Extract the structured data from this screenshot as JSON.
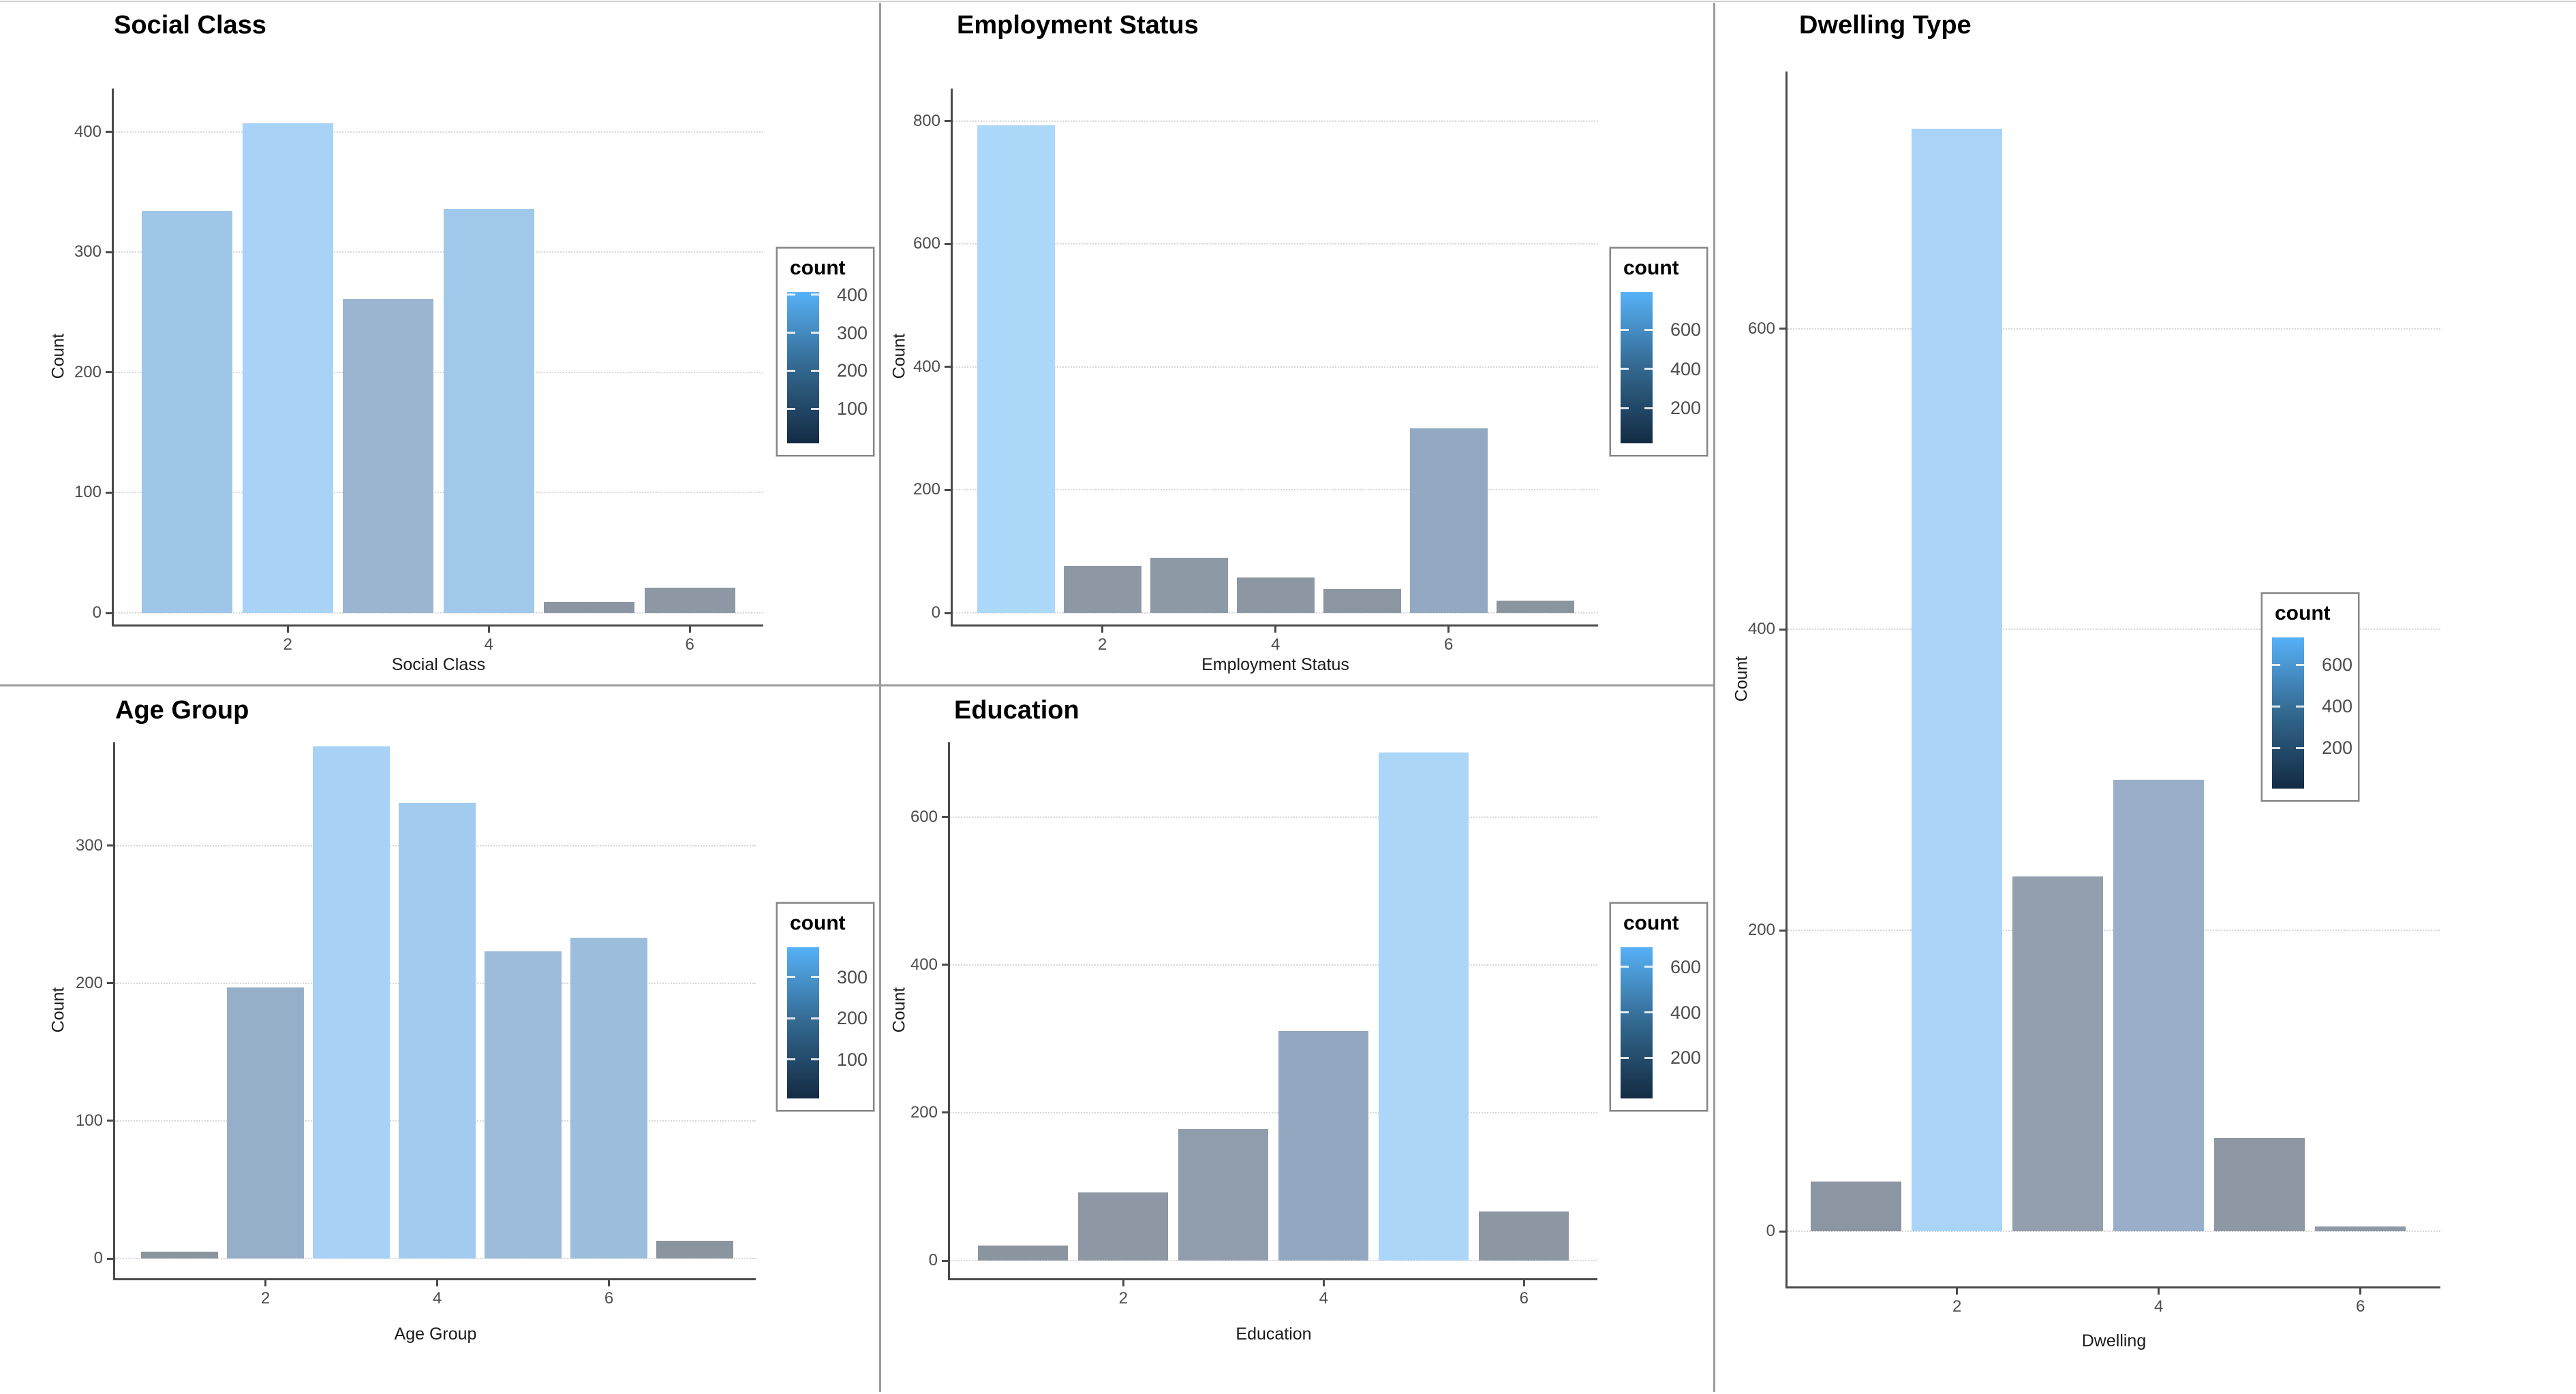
{
  "app": {
    "background": "#ffffff"
  },
  "colors": {
    "gradient_high": "#56B1F7",
    "gradient_low": "#132B43",
    "axis_line": "#4a4a4a",
    "grid_line": "#d6d6d6",
    "tick_text": "#4d4d4d",
    "title_text": "#000000",
    "divider": "#9b9b9b",
    "legend_border": "#858585"
  },
  "chart_data": [
    {
      "id": "social-class",
      "type": "bar",
      "title": "Social Class",
      "xlabel": "Social Class",
      "ylabel": "Count",
      "x": [
        1,
        2,
        3,
        4,
        5,
        6
      ],
      "values": [
        334,
        407,
        261,
        336,
        9,
        21
      ],
      "bar_colors": [
        "#9EC6E8",
        "#A8D3F6",
        "#9BB4D0",
        "#A0C8EA",
        "#8C96A2",
        "#8D98A4"
      ],
      "yticks": [
        0,
        100,
        200,
        300,
        400
      ],
      "xticks": [
        2,
        4,
        6
      ],
      "ylim": [
        0,
        436
      ],
      "grid": true,
      "legend": {
        "title": "count",
        "ticks": [
          400,
          300,
          200,
          100
        ],
        "domain": [
          9,
          407
        ],
        "position": "right"
      }
    },
    {
      "id": "employment-status",
      "type": "bar",
      "title": "Employment Status",
      "xlabel": "Employment Status",
      "ylabel": "Count",
      "x": [
        1,
        2,
        3,
        4,
        5,
        6,
        7
      ],
      "values": [
        793,
        76,
        90,
        58,
        39,
        300,
        20
      ],
      "bar_colors": [
        "#ACD8F9",
        "#8D98A4",
        "#8E99A6",
        "#8C97A3",
        "#8B96A2",
        "#93A9C1",
        "#8B95A0"
      ],
      "yticks": [
        0,
        200,
        400,
        600,
        800
      ],
      "xticks": [
        2,
        4,
        6
      ],
      "ylim": [
        0,
        853
      ],
      "grid": true,
      "legend": {
        "title": "count",
        "ticks": [
          600,
          400,
          200
        ],
        "domain": [
          20,
          793
        ],
        "position": "right"
      }
    },
    {
      "id": "dwelling-type",
      "type": "bar",
      "title": "Dwelling Type",
      "xlabel": "Dwelling",
      "ylabel": "Count",
      "x": [
        1,
        2,
        3,
        4,
        5,
        6
      ],
      "values": [
        33,
        733,
        236,
        300,
        62,
        3
      ],
      "bar_colors": [
        "#8C96A2",
        "#A9D4F7",
        "#939FAE",
        "#99AFC9",
        "#8D98A4",
        "#8E99A5"
      ],
      "yticks": [
        0,
        200,
        400,
        600
      ],
      "xticks": [
        2,
        4,
        6
      ],
      "ylim": [
        0,
        771
      ],
      "grid": true,
      "legend": {
        "title": "count",
        "ticks": [
          600,
          400,
          200
        ],
        "domain": [
          3,
          733
        ],
        "position": "right"
      }
    },
    {
      "id": "age-group",
      "type": "bar",
      "title": "Age Group",
      "xlabel": "Age Group",
      "ylabel": "Count",
      "x": [
        1,
        2,
        3,
        4,
        5,
        6,
        7
      ],
      "values": [
        5,
        197,
        372,
        331,
        223,
        233,
        13
      ],
      "bar_colors": [
        "#8A949F",
        "#96AFC9",
        "#A7D2F6",
        "#A2CBF0",
        "#9BBBD9",
        "#9CBDDB",
        "#8B95A0"
      ],
      "yticks": [
        0,
        100,
        200,
        300
      ],
      "xticks": [
        2,
        4,
        6
      ],
      "ylim": [
        0,
        375
      ],
      "grid": true,
      "legend": {
        "title": "count",
        "ticks": [
          300,
          200,
          100
        ],
        "domain": [
          5,
          372
        ],
        "position": "right"
      }
    },
    {
      "id": "education",
      "type": "bar",
      "title": "Education",
      "xlabel": "Education",
      "ylabel": "Count",
      "x": [
        1,
        2,
        3,
        4,
        5,
        6
      ],
      "values": [
        20,
        92,
        178,
        310,
        687,
        66
      ],
      "bar_colors": [
        "#8B95A0",
        "#8D98A4",
        "#8F9DAC",
        "#93A8C0",
        "#ABD6F8",
        "#8C97A3"
      ],
      "yticks": [
        0,
        200,
        400,
        600
      ],
      "xticks": [
        2,
        4,
        6
      ],
      "ylim": [
        0,
        701
      ],
      "grid": true,
      "legend": {
        "title": "count",
        "ticks": [
          600,
          400,
          200
        ],
        "domain": [
          20,
          687
        ],
        "position": "right"
      }
    }
  ]
}
